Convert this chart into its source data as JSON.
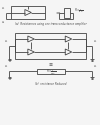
{
  "title_a": "(a)  Resistances using one transconductance amplifier",
  "title_b": "(b)  resistance Reduced",
  "background": "#f5f5f5",
  "line_color": "#444444",
  "text_color": "#444444",
  "fig_width": 1.0,
  "fig_height": 1.25,
  "dpi": 100
}
